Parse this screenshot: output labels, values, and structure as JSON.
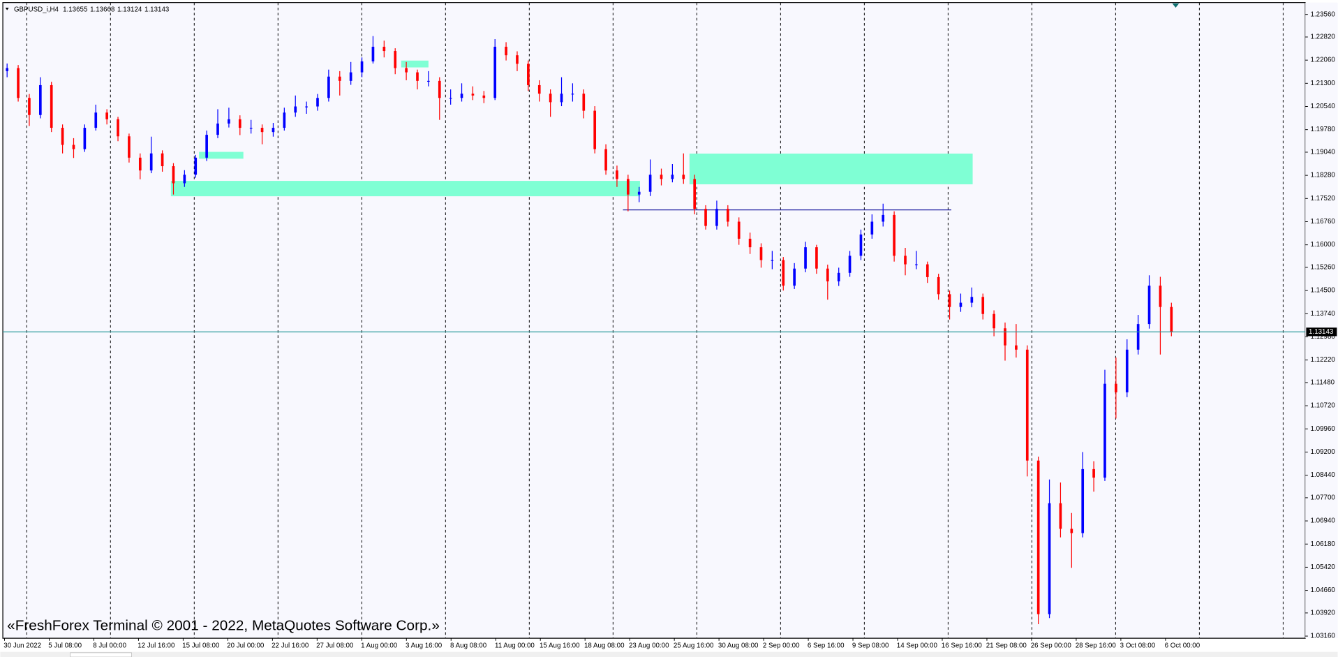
{
  "chart_data": {
    "type": "candlestick",
    "symbol": "GBPUSD_i,H4",
    "header_ohlc": [
      1.13655,
      1.13668,
      1.13124,
      1.13143
    ],
    "watermark": "«FreshForex Terminal © 2001 - 2022, MetaQuotes Software Corp.»",
    "up_color": "#0000ff",
    "down_color": "#ff0000",
    "last_price": 1.13143,
    "last_price_color": "#2a9a9a",
    "ylim": [
      1.0309,
      1.2395
    ],
    "yticks": [
      {
        "value": 1.2356,
        "label": "1.23560"
      },
      {
        "value": 1.2282,
        "label": "1.22820"
      },
      {
        "value": 1.2206,
        "label": "1.22060"
      },
      {
        "value": 1.213,
        "label": "1.21300"
      },
      {
        "value": 1.2054,
        "label": "1.20540"
      },
      {
        "value": 1.1978,
        "label": "1.19780"
      },
      {
        "value": 1.1904,
        "label": "1.19040"
      },
      {
        "value": 1.1828,
        "label": "1.18280"
      },
      {
        "value": 1.1752,
        "label": "1.17520"
      },
      {
        "value": 1.1676,
        "label": "1.16760"
      },
      {
        "value": 1.16,
        "label": "1.16000"
      },
      {
        "value": 1.1526,
        "label": "1.15260"
      },
      {
        "value": 1.145,
        "label": "1.14500"
      },
      {
        "value": 1.1374,
        "label": "1.13740"
      },
      {
        "value": 1.1298,
        "label": "1.12980"
      },
      {
        "value": 1.1222,
        "label": "1.12220"
      },
      {
        "value": 1.1148,
        "label": "1.11480"
      },
      {
        "value": 1.1072,
        "label": "1.10720"
      },
      {
        "value": 1.0996,
        "label": "1.09960"
      },
      {
        "value": 1.092,
        "label": "1.09200"
      },
      {
        "value": 1.0844,
        "label": "1.08440"
      },
      {
        "value": 1.077,
        "label": "1.07700"
      },
      {
        "value": 1.0694,
        "label": "1.06940"
      },
      {
        "value": 1.0618,
        "label": "1.06180"
      },
      {
        "value": 1.0542,
        "label": "1.05420"
      },
      {
        "value": 1.0466,
        "label": "1.04660"
      },
      {
        "value": 1.0392,
        "label": "1.03920"
      },
      {
        "value": 1.0316,
        "label": "1.03160"
      }
    ],
    "categories": [
      "30 Jun 2022",
      "5 Jul 08:00",
      "8 Jul 00:00",
      "12 Jul 16:00",
      "15 Jul 08:00",
      "20 Jul 00:00",
      "22 Jul 16:00",
      "27 Jul 08:00",
      "1 Aug 00:00",
      "3 Aug 16:00",
      "8 Aug 08:00",
      "11 Aug 00:00",
      "15 Aug 16:00",
      "18 Aug 08:00",
      "23 Aug 00:00",
      "25 Aug 16:00",
      "30 Aug 08:00",
      "2 Sep 00:00",
      "6 Sep 16:00",
      "9 Sep 08:00",
      "14 Sep 00:00",
      "16 Sep 16:00",
      "21 Sep 08:00",
      "26 Sep 00:00",
      "28 Sep 16:00",
      "3 Oct 08:00",
      "6 Oct 00:00"
    ],
    "candles": [
      [
        1.217,
        1.2195,
        1.215,
        1.218
      ],
      [
        1.218,
        1.219,
        1.207,
        1.2082
      ],
      [
        1.2082,
        1.2095,
        1.199,
        1.2026
      ],
      [
        1.2026,
        1.215,
        1.2015,
        1.2124
      ],
      [
        1.2124,
        1.2135,
        1.197,
        1.1984
      ],
      [
        1.1984,
        1.1995,
        1.19,
        1.1928
      ],
      [
        1.1928,
        1.195,
        1.1885,
        1.1914
      ],
      [
        1.1914,
        1.1995,
        1.1905,
        1.1984
      ],
      [
        1.1984,
        1.206,
        1.1975,
        1.2034
      ],
      [
        1.2034,
        1.2045,
        1.1995,
        1.2012
      ],
      [
        1.2012,
        1.202,
        1.194,
        1.1956
      ],
      [
        1.1956,
        1.1965,
        1.187,
        1.1886
      ],
      [
        1.1886,
        1.19,
        1.1815,
        1.1844
      ],
      [
        1.1844,
        1.1955,
        1.1835,
        1.19
      ],
      [
        1.19,
        1.191,
        1.184,
        1.1858
      ],
      [
        1.1858,
        1.1868,
        1.1765,
        1.1802
      ],
      [
        1.1802,
        1.1845,
        1.179,
        1.183
      ],
      [
        1.183,
        1.1895,
        1.182,
        1.1886
      ],
      [
        1.1886,
        1.1975,
        1.1875,
        1.1961
      ],
      [
        1.1961,
        1.2045,
        1.195,
        1.1998
      ],
      [
        1.1998,
        1.205,
        1.1985,
        1.2012
      ],
      [
        1.2012,
        1.2025,
        1.196,
        1.1984
      ],
      [
        1.1984,
        1.201,
        1.1965,
        1.1984
      ],
      [
        1.1984,
        1.1995,
        1.193,
        1.197
      ],
      [
        1.197,
        1.2,
        1.1955,
        1.1984
      ],
      [
        1.1984,
        1.205,
        1.1975,
        1.2034
      ],
      [
        1.2034,
        1.209,
        1.202,
        1.2054
      ],
      [
        1.2054,
        1.207,
        1.203,
        1.2054
      ],
      [
        1.2054,
        1.2095,
        1.204,
        1.2082
      ],
      [
        1.2082,
        1.2175,
        1.207,
        1.2152
      ],
      [
        1.2152,
        1.217,
        1.209,
        1.2138
      ],
      [
        1.2138,
        1.22,
        1.2125,
        1.2166
      ],
      [
        1.2166,
        1.2215,
        1.215,
        1.2202
      ],
      [
        1.2202,
        1.2285,
        1.2195,
        1.225
      ],
      [
        1.225,
        1.227,
        1.2215,
        1.2236
      ],
      [
        1.2236,
        1.2245,
        1.216,
        1.218
      ],
      [
        1.218,
        1.22,
        1.214,
        1.2166
      ],
      [
        1.2166,
        1.2175,
        1.211,
        1.2138
      ],
      [
        1.2138,
        1.217,
        1.212,
        1.2138
      ],
      [
        1.2138,
        1.215,
        1.201,
        1.2082
      ],
      [
        1.2082,
        1.211,
        1.206,
        1.2082
      ],
      [
        1.2082,
        1.213,
        1.207,
        1.2096
      ],
      [
        1.2096,
        1.212,
        1.2075,
        1.209
      ],
      [
        1.209,
        1.2105,
        1.2065,
        1.2082
      ],
      [
        1.2082,
        1.2275,
        1.2075,
        1.225
      ],
      [
        1.225,
        1.2265,
        1.2205,
        1.2222
      ],
      [
        1.2222,
        1.2235,
        1.217,
        1.2194
      ],
      [
        1.2194,
        1.2205,
        1.2105,
        1.2124
      ],
      [
        1.2124,
        1.214,
        1.207,
        1.2096
      ],
      [
        1.2096,
        1.211,
        1.202,
        1.2068
      ],
      [
        1.2068,
        1.215,
        1.2055,
        1.2096
      ],
      [
        1.2096,
        1.213,
        1.207,
        1.2096
      ],
      [
        1.2096,
        1.211,
        1.2015,
        1.204
      ],
      [
        1.204,
        1.2055,
        1.19,
        1.1914
      ],
      [
        1.1914,
        1.193,
        1.183,
        1.1844
      ],
      [
        1.1844,
        1.186,
        1.179,
        1.1816
      ],
      [
        1.1816,
        1.183,
        1.171,
        1.1765
      ],
      [
        1.1765,
        1.179,
        1.174,
        1.1774
      ],
      [
        1.1774,
        1.188,
        1.176,
        1.183
      ],
      [
        1.183,
        1.185,
        1.1795,
        1.1816
      ],
      [
        1.1816,
        1.1865,
        1.1805,
        1.183
      ],
      [
        1.183,
        1.19,
        1.18,
        1.1816
      ],
      [
        1.1816,
        1.183,
        1.17,
        1.1718
      ],
      [
        1.1718,
        1.173,
        1.165,
        1.1662
      ],
      [
        1.1662,
        1.1745,
        1.165,
        1.1718
      ],
      [
        1.1718,
        1.173,
        1.166,
        1.1676
      ],
      [
        1.1676,
        1.169,
        1.16,
        1.162
      ],
      [
        1.162,
        1.164,
        1.157,
        1.1592
      ],
      [
        1.1592,
        1.1605,
        1.1525,
        1.155
      ],
      [
        1.155,
        1.158,
        1.152,
        1.155
      ],
      [
        1.155,
        1.156,
        1.145,
        1.1466
      ],
      [
        1.1466,
        1.154,
        1.1455,
        1.1522
      ],
      [
        1.1522,
        1.161,
        1.151,
        1.1592
      ],
      [
        1.1592,
        1.16,
        1.1505,
        1.1522
      ],
      [
        1.1522,
        1.1535,
        1.142,
        1.148
      ],
      [
        1.148,
        1.1525,
        1.1465,
        1.1508
      ],
      [
        1.1508,
        1.158,
        1.1495,
        1.1564
      ],
      [
        1.1564,
        1.165,
        1.155,
        1.1634
      ],
      [
        1.1634,
        1.17,
        1.162,
        1.1676
      ],
      [
        1.1676,
        1.1735,
        1.166,
        1.1698
      ],
      [
        1.1698,
        1.171,
        1.1545,
        1.1564
      ],
      [
        1.1564,
        1.159,
        1.15,
        1.1536
      ],
      [
        1.1536,
        1.158,
        1.152,
        1.1536
      ],
      [
        1.1536,
        1.1545,
        1.1475,
        1.1494
      ],
      [
        1.1494,
        1.1505,
        1.142,
        1.1438
      ],
      [
        1.1438,
        1.145,
        1.1355,
        1.1396
      ],
      [
        1.1396,
        1.144,
        1.138,
        1.141
      ],
      [
        1.141,
        1.146,
        1.1395,
        1.1429
      ],
      [
        1.1429,
        1.144,
        1.1355,
        1.1373
      ],
      [
        1.1373,
        1.1385,
        1.13,
        1.1326
      ],
      [
        1.1326,
        1.1345,
        1.122,
        1.127
      ],
      [
        1.127,
        1.134,
        1.123,
        1.1256
      ],
      [
        1.1256,
        1.127,
        1.084,
        1.0892
      ],
      [
        1.0892,
        1.0905,
        1.0355,
        1.0388
      ],
      [
        1.0388,
        1.083,
        1.0375,
        1.0752
      ],
      [
        1.0752,
        1.082,
        1.064,
        1.0668
      ],
      [
        1.0668,
        1.072,
        1.054,
        1.0654
      ],
      [
        1.0654,
        1.092,
        1.064,
        1.0864
      ],
      [
        1.0864,
        1.089,
        1.079,
        1.0836
      ],
      [
        1.0836,
        1.119,
        1.0825,
        1.1144
      ],
      [
        1.1144,
        1.123,
        1.103,
        1.1116
      ],
      [
        1.1116,
        1.129,
        1.11,
        1.1256
      ],
      [
        1.1256,
        1.137,
        1.124,
        1.134
      ],
      [
        1.134,
        1.15,
        1.1325,
        1.1466
      ],
      [
        1.1466,
        1.1495,
        1.124,
        1.1396
      ],
      [
        1.1396,
        1.141,
        1.13,
        1.1314
      ]
    ]
  }
}
